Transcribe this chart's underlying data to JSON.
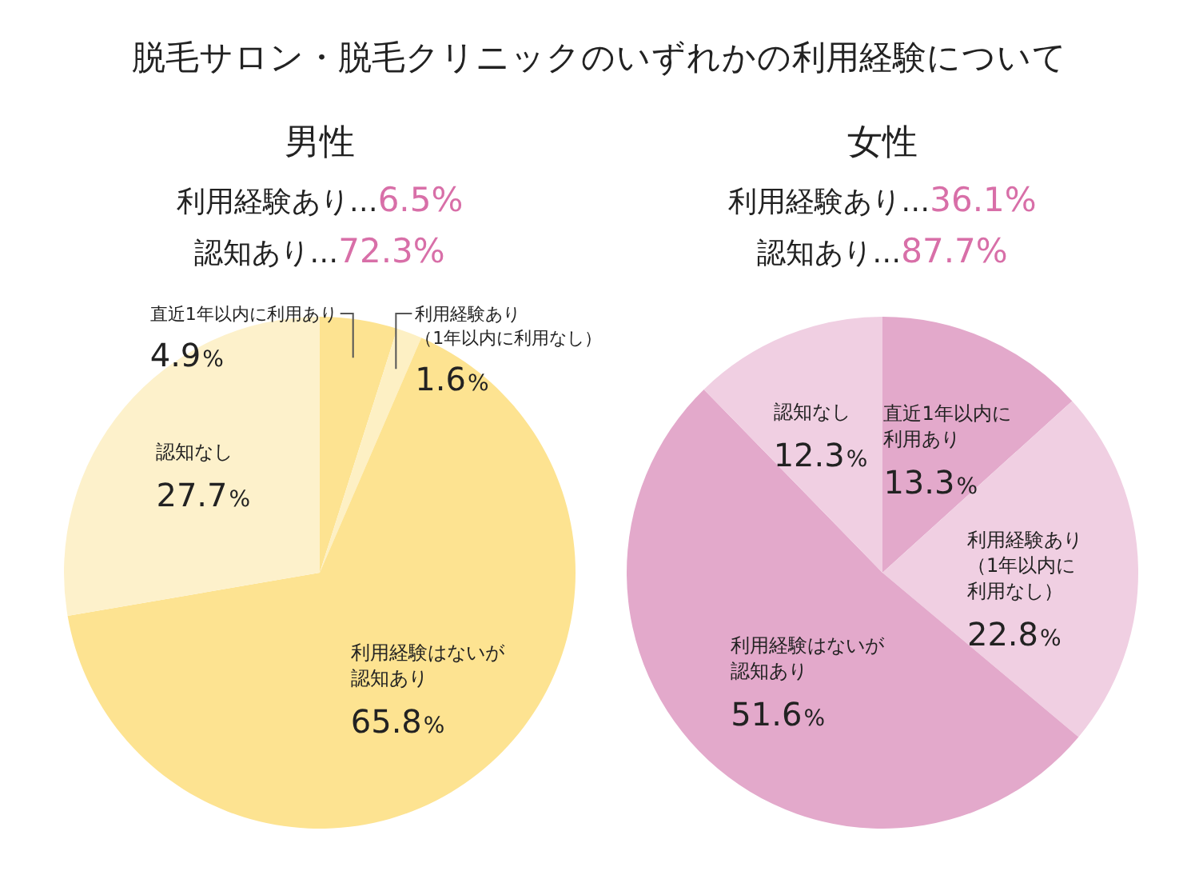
{
  "chart_data": [
    {
      "type": "pie",
      "title": "脱毛サロン・脱毛クリニックのいずれかの利用経験について",
      "subtitle": "男性",
      "annotations": [
        "利用経験あり…6.5%",
        "認知あり…72.3%"
      ],
      "categories": [
        "直近1年以内に利用あり",
        "利用経験あり（1年以内に利用なし）",
        "利用経験はないが認知あり",
        "認知なし"
      ],
      "values": [
        4.9,
        1.6,
        65.8,
        27.7
      ],
      "value_labels": [
        "4.9%",
        "1.6%",
        "65.8%",
        "27.7%"
      ],
      "colors": [
        "#fde391",
        "#fdf0c4",
        "#fde391",
        "#fdf1cb"
      ],
      "legend": false
    },
    {
      "type": "pie",
      "subtitle": "女性",
      "annotations": [
        "利用経験あり…36.1%",
        "認知あり…87.7%"
      ],
      "categories": [
        "直近1年以内に利用あり",
        "利用経験あり（1年以内に利用なし）",
        "利用経験はないが認知あり",
        "認知なし"
      ],
      "values": [
        13.3,
        22.8,
        51.6,
        12.3
      ],
      "value_labels": [
        "13.3%",
        "22.8%",
        "51.6%",
        "12.3%"
      ],
      "colors": [
        "#e3a9cb",
        "#f0cfe2",
        "#e3a9cb",
        "#f0cfe2"
      ],
      "legend": false
    }
  ]
}
